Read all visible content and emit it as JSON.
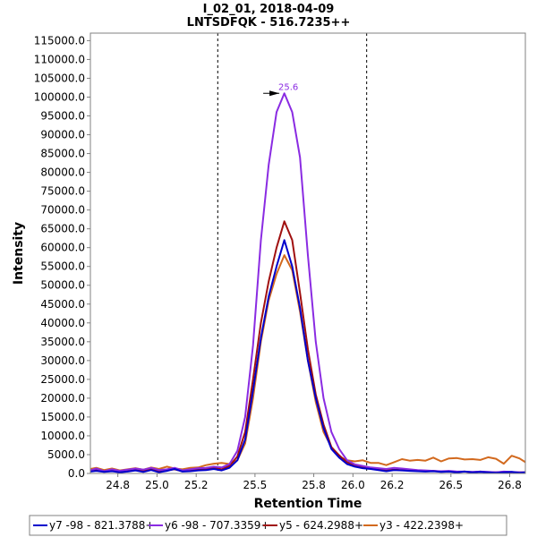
{
  "chart_data": {
    "type": "line",
    "title": "I_02_01, 2018-04-09",
    "subtitle": "LNTSDFQK - 516.7235++",
    "xlabel": "Retention Time",
    "ylabel": "Intensity",
    "xlim": [
      24.66,
      26.88
    ],
    "ylim": [
      0,
      117000
    ],
    "xticks": [
      24.8,
      25.0,
      25.2,
      25.5,
      25.8,
      26.0,
      26.2,
      26.5,
      26.8
    ],
    "xtick_labels": [
      "24.8",
      "25.0",
      "25.2",
      "25.5",
      "25.8",
      "26.0",
      "26.2",
      "26.5",
      "26.8"
    ],
    "yticks": [
      0,
      5000,
      10000,
      15000,
      20000,
      25000,
      30000,
      35000,
      40000,
      45000,
      50000,
      55000,
      60000,
      65000,
      70000,
      75000,
      80000,
      85000,
      90000,
      95000,
      100000,
      105000,
      110000,
      115000
    ],
    "ytick_labels": [
      "0.0",
      "5000.0",
      "10000.0",
      "15000.0",
      "20000.0",
      "25000.0",
      "30000.0",
      "35000.0",
      "40000.0",
      "45000.0",
      "50000.0",
      "55000.0",
      "60000.0",
      "65000.0",
      "70000.0",
      "75000.0",
      "80000.0",
      "85000.0",
      "90000.0",
      "95000.0",
      "100000.0",
      "105000.0",
      "110000.0",
      "115000.0"
    ],
    "boundaries": [
      25.31,
      26.07
    ],
    "annotations": [
      {
        "text": "25.6",
        "x": 25.67,
        "y": 101000,
        "color": "#8a2be2"
      }
    ],
    "legend_position": "bottom",
    "x": [
      24.66,
      24.69,
      24.73,
      24.77,
      24.81,
      24.85,
      24.89,
      24.93,
      24.97,
      25.01,
      25.05,
      25.09,
      25.13,
      25.17,
      25.21,
      25.25,
      25.29,
      25.33,
      25.37,
      25.41,
      25.45,
      25.49,
      25.53,
      25.57,
      25.61,
      25.65,
      25.69,
      25.73,
      25.77,
      25.81,
      25.85,
      25.89,
      25.93,
      25.97,
      26.01,
      26.05,
      26.09,
      26.13,
      26.17,
      26.21,
      26.25,
      26.29,
      26.33,
      26.37,
      26.41,
      26.45,
      26.49,
      26.53,
      26.57,
      26.61,
      26.65,
      26.69,
      26.73,
      26.77,
      26.81,
      26.85,
      26.88
    ],
    "series": [
      {
        "name": "y7 -98 - 821.3788+",
        "color": "#0000cc",
        "values": [
          500,
          700,
          400,
          600,
          300,
          500,
          800,
          400,
          900,
          300,
          700,
          1200,
          500,
          600,
          800,
          900,
          1200,
          800,
          1500,
          3500,
          9000,
          22000,
          36000,
          47000,
          55000,
          62000,
          55000,
          44000,
          30000,
          20000,
          12000,
          6500,
          4200,
          2500,
          1800,
          1400,
          1200,
          900,
          600,
          900,
          800,
          700,
          600,
          500,
          600,
          400,
          500,
          300,
          500,
          300,
          400,
          300,
          200,
          300,
          400,
          200,
          300
        ]
      },
      {
        "name": "y6 -98 - 707.3359+",
        "color": "#8a2be2",
        "values": [
          800,
          1300,
          600,
          1100,
          700,
          1000,
          1300,
          1000,
          1500,
          900,
          1100,
          1500,
          800,
          1100,
          1400,
          1500,
          1800,
          1600,
          2500,
          6000,
          15000,
          34000,
          62000,
          82000,
          96000,
          101000,
          96000,
          84000,
          58000,
          35000,
          20000,
          11000,
          6500,
          3500,
          2400,
          2000,
          1600,
          1400,
          1200,
          1500,
          1300,
          1100,
          900,
          800,
          700,
          600,
          700,
          500,
          500,
          400,
          500,
          400,
          300,
          500,
          400,
          300,
          300
        ]
      },
      {
        "name": "y5 - 624.2988+",
        "color": "#a01010",
        "values": [
          600,
          900,
          500,
          800,
          400,
          700,
          1000,
          600,
          1100,
          500,
          900,
          1100,
          600,
          800,
          1000,
          1200,
          1500,
          1100,
          2000,
          4500,
          11000,
          25000,
          40000,
          51000,
          60000,
          67000,
          62000,
          48000,
          33000,
          21000,
          13000,
          7000,
          4800,
          3000,
          2200,
          1800,
          1400,
          1000,
          800,
          1000,
          900,
          800,
          700,
          600,
          700,
          500,
          500,
          400,
          500,
          300,
          500,
          300,
          300,
          400,
          300,
          300,
          300
        ]
      },
      {
        "name": "y3 - 422.2398+",
        "color": "#d2691e",
        "values": [
          1200,
          1500,
          900,
          1300,
          800,
          1100,
          1400,
          1000,
          1600,
          1200,
          1800,
          1300,
          1100,
          1500,
          1600,
          2200,
          2600,
          2800,
          2500,
          3500,
          8000,
          20000,
          35000,
          46000,
          53000,
          58000,
          54000,
          43000,
          30000,
          19000,
          11000,
          7000,
          4500,
          3500,
          3200,
          3500,
          2800,
          2800,
          2200,
          3000,
          3800,
          3400,
          3600,
          3400,
          4200,
          3200,
          4000,
          4100,
          3700,
          3800,
          3600,
          4300,
          3900,
          2600,
          4700,
          4000,
          3000
        ]
      }
    ]
  }
}
